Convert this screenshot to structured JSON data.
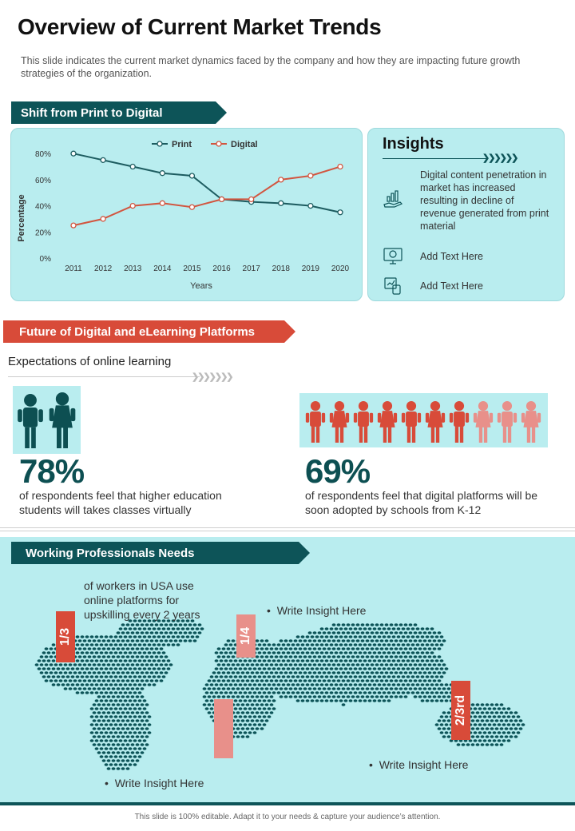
{
  "header": {
    "title": "Overview of Current Market Trends",
    "subtitle": "This slide indicates the current market dynamics faced by the company and how they are impacting future growth strategies of the organization."
  },
  "section1": {
    "banner": "Shift from Print to Digital",
    "insights": {
      "title": "Insights",
      "items": [
        {
          "text": "Digital content penetration in market has increased resulting in decline of revenue generated from print material",
          "icon": "hand-chart-icon"
        },
        {
          "text": "Add Text Here",
          "icon": "monitor-icon"
        },
        {
          "text": "Add Text Here",
          "icon": "phone-chart-icon"
        }
      ]
    }
  },
  "chart_data": {
    "type": "line",
    "x": [
      "2011",
      "2012",
      "2013",
      "2014",
      "2015",
      "2016",
      "2017",
      "2018",
      "2019",
      "2020"
    ],
    "series": [
      {
        "name": "Print",
        "color": "#1d5c60",
        "values": [
          80,
          75,
          70,
          65,
          63,
          45,
          43,
          42,
          40,
          35
        ]
      },
      {
        "name": "Digital",
        "color": "#d2553f",
        "values": [
          25,
          30,
          40,
          42,
          39,
          45,
          45,
          60,
          63,
          70
        ]
      }
    ],
    "yticks": [
      "0%",
      "20%",
      "40%",
      "60%",
      "80%"
    ],
    "ylim": [
      0,
      85
    ],
    "xlabel": "Years",
    "ylabel": "Percentage",
    "legend": "top-center",
    "grid": false
  },
  "section2": {
    "banner": "Future of Digital and eLearning Platforms",
    "subheading": "Expectations of online learning",
    "stat1": {
      "value": "78%",
      "desc": "of respondents feel that higher education students will takes classes virtually"
    },
    "stat2": {
      "value": "69%",
      "desc": "of respondents feel that digital platforms will be soon adopted by schools from K-12"
    },
    "people_colors": {
      "dark": "#0d4f52",
      "red": "#d84b39",
      "light": "#e8908a"
    }
  },
  "section3": {
    "banner": "Working Professionals  Needs",
    "workers_text": "of workers in USA use online platforms for upskilling every 2 years",
    "insight_a": "Write Insight Here",
    "insight_b": "Write Insight Here",
    "insight_c": "Write Insight Here",
    "tags": [
      "1/3",
      "1/4",
      "2/3rd"
    ]
  },
  "footer": "This slide is 100% editable.  Adapt it to your needs & capture your audience’s attention."
}
